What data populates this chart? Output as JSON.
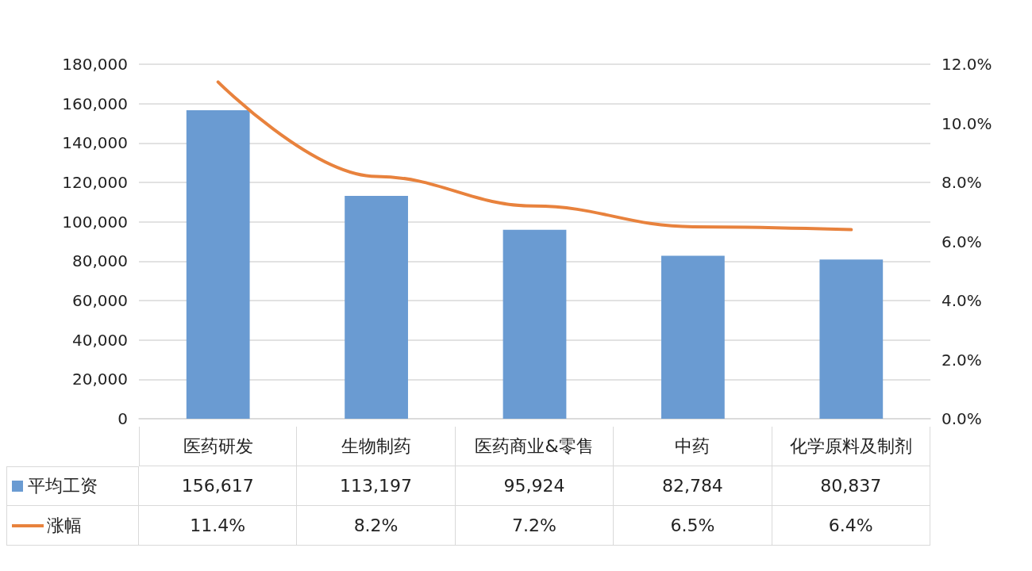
{
  "chart_data": {
    "type": "bar",
    "categories": [
      "医药研发",
      "生物制药",
      "医药商业&零售",
      "中药",
      "化学原料及制剂"
    ],
    "series": [
      {
        "name": "平均工资",
        "color": "#6a9bd2",
        "values": [
          156617,
          113197,
          95924,
          82784,
          80837
        ],
        "value_labels": [
          "156,617",
          "113,197",
          "95,924",
          "82,784",
          "80,837"
        ]
      },
      {
        "name": "涨幅",
        "type": "line",
        "axis": "y2",
        "color": "#e8823d",
        "marker": "none",
        "line_style": "solid",
        "values": [
          11.4,
          8.2,
          7.2,
          6.5,
          6.4
        ],
        "value_labels": [
          "11.4%",
          "8.2%",
          "7.2%",
          "6.5%",
          "6.4%"
        ]
      }
    ],
    "ylim": [
      0,
      180000
    ],
    "yticks": [
      {
        "value": 0,
        "label": "0"
      },
      {
        "value": 20000,
        "label": "20,000"
      },
      {
        "value": 40000,
        "label": "40,000"
      },
      {
        "value": 60000,
        "label": "60,000"
      },
      {
        "value": 80000,
        "label": "80,000"
      },
      {
        "value": 100000,
        "label": "100,000"
      },
      {
        "value": 120000,
        "label": "120,000"
      },
      {
        "value": 140000,
        "label": "140,000"
      },
      {
        "value": 160000,
        "label": "160,000"
      },
      {
        "value": 180000,
        "label": "180,000"
      }
    ],
    "y2lim": [
      0,
      12
    ],
    "y2ticks": [
      {
        "value": 0,
        "label": "0.0%"
      },
      {
        "value": 2,
        "label": "2.0%"
      },
      {
        "value": 4,
        "label": "4.0%"
      },
      {
        "value": 6,
        "label": "6.0%"
      },
      {
        "value": 8,
        "label": "8.0%"
      },
      {
        "value": 10,
        "label": "10.0%"
      },
      {
        "value": 12,
        "label": "12.0%"
      }
    ],
    "grid": "y",
    "legend": "bottom left"
  }
}
